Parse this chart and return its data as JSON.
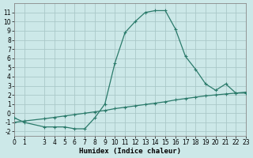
{
  "xlabel": "Humidex (Indice chaleur)",
  "bg_color": "#cce8e8",
  "grid_color": "#aac8c8",
  "line_color": "#2a7a6a",
  "x_main": [
    0,
    1,
    3,
    4,
    5,
    6,
    7,
    8,
    9,
    10,
    11,
    12,
    13,
    14,
    15,
    16,
    17,
    18,
    19,
    20,
    21,
    22,
    23
  ],
  "y_main": [
    -0.5,
    -1.0,
    -1.5,
    -1.5,
    -1.5,
    -1.7,
    -1.7,
    -0.5,
    1.0,
    5.5,
    8.8,
    10.0,
    11.0,
    11.2,
    11.2,
    9.2,
    6.2,
    4.8,
    3.2,
    2.5,
    3.2,
    2.2,
    2.2
  ],
  "x_ref": [
    0,
    1,
    3,
    4,
    5,
    6,
    7,
    8,
    9,
    10,
    11,
    12,
    13,
    14,
    15,
    16,
    17,
    18,
    19,
    20,
    21,
    22,
    23
  ],
  "y_ref": [
    -1.0,
    -0.85,
    -0.6,
    -0.45,
    -0.3,
    -0.15,
    0.0,
    0.15,
    0.3,
    0.5,
    0.65,
    0.8,
    0.95,
    1.1,
    1.25,
    1.45,
    1.6,
    1.75,
    1.9,
    2.0,
    2.1,
    2.2,
    2.3
  ],
  "xlim": [
    0,
    23
  ],
  "ylim": [
    -2.5,
    12.0
  ],
  "yticks": [
    -2,
    -1,
    0,
    1,
    2,
    3,
    4,
    5,
    6,
    7,
    8,
    9,
    10,
    11
  ],
  "xticks": [
    0,
    1,
    3,
    4,
    5,
    6,
    7,
    8,
    9,
    10,
    11,
    12,
    13,
    14,
    15,
    16,
    17,
    18,
    19,
    20,
    21,
    22,
    23
  ],
  "marker": "+",
  "markersize": 3,
  "linewidth": 0.9,
  "xlabel_fontsize": 6.5,
  "tick_fontsize": 5.5
}
